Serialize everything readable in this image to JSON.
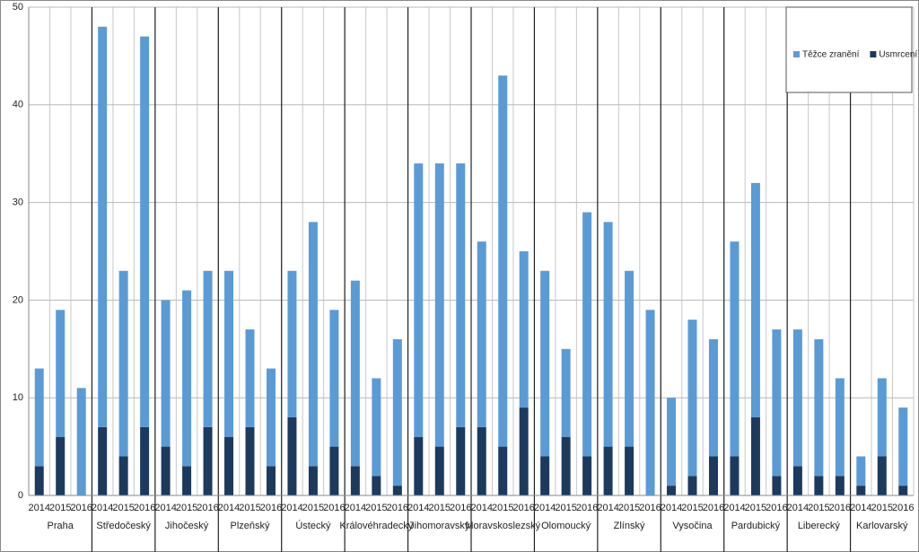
{
  "chart_data": {
    "type": "stacked_bar",
    "categories": [
      "2014",
      "2015",
      "2016",
      "2014",
      "2015",
      "2016",
      "2014",
      "2015",
      "2016",
      "2014",
      "2015",
      "2016",
      "2014",
      "2015",
      "2016",
      "2014",
      "2015",
      "2016",
      "2014",
      "2015",
      "2016",
      "2014",
      "2015",
      "2016",
      "2014",
      "2015",
      "2016",
      "2014",
      "2015",
      "2016",
      "2014",
      "2015",
      "2016",
      "2014",
      "2015",
      "2016",
      "2014",
      "2015",
      "2016",
      "2014",
      "2015",
      "2016"
    ],
    "groups": [
      "Praha",
      "Středočeský",
      "Jihočeský",
      "Plzeňský",
      "Ústecký",
      "Královéhradecký",
      "Jihomoravský",
      "Moravskoslezský",
      "Olomoucký",
      "Zlínský",
      "Vysočina",
      "Pardubický",
      "Liberecký",
      "Karlovarský"
    ],
    "series": [
      {
        "name": "Těžce zranění",
        "color": "#5b9bd5",
        "values": [
          10,
          13,
          11,
          41,
          19,
          40,
          15,
          18,
          16,
          17,
          10,
          10,
          15,
          25,
          14,
          19,
          10,
          15,
          28,
          29,
          27,
          19,
          38,
          16,
          19,
          9,
          25,
          23,
          18,
          19,
          9,
          16,
          12,
          22,
          24,
          15,
          14,
          14,
          10,
          3,
          8,
          8
        ]
      },
      {
        "name": "Usmrcení",
        "color": "#1c3a5e",
        "values": [
          3,
          6,
          0,
          7,
          4,
          7,
          5,
          3,
          7,
          6,
          7,
          3,
          8,
          3,
          5,
          3,
          2,
          1,
          6,
          5,
          7,
          7,
          5,
          9,
          4,
          6,
          4,
          5,
          5,
          0,
          1,
          2,
          4,
          4,
          8,
          2,
          3,
          2,
          2,
          1,
          4,
          1
        ]
      }
    ],
    "ylim": [
      0,
      50
    ],
    "yticks": [
      0,
      10,
      20,
      30,
      40,
      50
    ],
    "grid": true,
    "legend": "top-right"
  }
}
